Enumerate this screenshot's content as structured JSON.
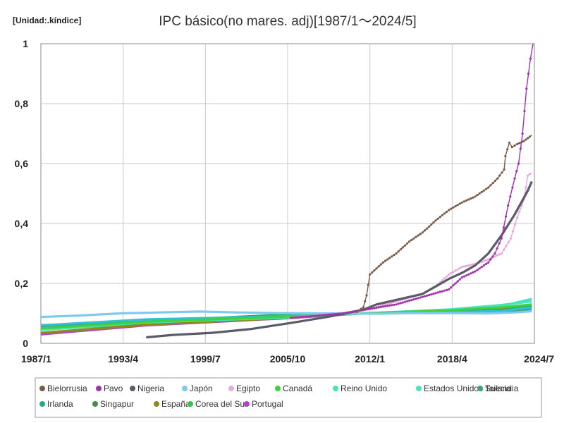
{
  "chart_data": {
    "type": "line",
    "unit_label": "[Unidad:.kíndice]",
    "title": "IPC básico(no mares. adj)[1987/1～2024/5]",
    "xlabel": "",
    "ylabel": "",
    "x_ticks": [
      "1987/1",
      "1993/4",
      "1999/7",
      "2005/10",
      "2012/1",
      "2018/4",
      "2024/7"
    ],
    "x_tick_years": [
      1987.0,
      1993.25,
      1999.5,
      2005.75,
      2012.0,
      2018.25,
      2024.5
    ],
    "xlim": [
      1987.0,
      2024.5
    ],
    "y_ticks": [
      "0",
      "0,2",
      "0,4",
      "0,6",
      "0,8",
      "1"
    ],
    "y_tick_values": [
      0,
      0.2,
      0.4,
      0.6,
      0.8,
      1
    ],
    "ylim": [
      0,
      1
    ],
    "grid": true,
    "legend_position": "bottom",
    "series": [
      {
        "name": "Bielorrusia",
        "color": "#7a5a48",
        "marker": true,
        "points": [
          [
            2011.0,
            0.105
          ],
          [
            2011.5,
            0.12
          ],
          [
            2011.75,
            0.16
          ],
          [
            2012.0,
            0.23
          ],
          [
            2013.0,
            0.27
          ],
          [
            2014.0,
            0.3
          ],
          [
            2015.0,
            0.34
          ],
          [
            2016.0,
            0.37
          ],
          [
            2017.0,
            0.41
          ],
          [
            2018.0,
            0.445
          ],
          [
            2019.0,
            0.47
          ],
          [
            2020.0,
            0.49
          ],
          [
            2021.0,
            0.52
          ],
          [
            2021.7,
            0.55
          ],
          [
            2022.2,
            0.58
          ],
          [
            2022.3,
            0.625
          ],
          [
            2022.6,
            0.67
          ],
          [
            2022.8,
            0.655
          ],
          [
            2023.2,
            0.665
          ],
          [
            2023.7,
            0.675
          ],
          [
            2024.3,
            0.695
          ]
        ]
      },
      {
        "name": "Pavo",
        "color": "#a030b0",
        "marker": true,
        "points": [
          [
            2006.0,
            0.085
          ],
          [
            2010.0,
            0.1
          ],
          [
            2012.0,
            0.115
          ],
          [
            2014.0,
            0.13
          ],
          [
            2016.0,
            0.155
          ],
          [
            2018.0,
            0.18
          ],
          [
            2018.5,
            0.2
          ],
          [
            2019.0,
            0.22
          ],
          [
            2020.0,
            0.24
          ],
          [
            2021.0,
            0.27
          ],
          [
            2021.5,
            0.3
          ],
          [
            2022.0,
            0.35
          ],
          [
            2022.5,
            0.46
          ],
          [
            2023.0,
            0.55
          ],
          [
            2023.3,
            0.6
          ],
          [
            2023.6,
            0.7
          ],
          [
            2023.9,
            0.85
          ],
          [
            2024.2,
            0.95
          ],
          [
            2024.4,
            1.0
          ]
        ]
      },
      {
        "name": "Nigeria",
        "color": "#5a5a68",
        "marker": false,
        "points": [
          [
            1995.0,
            0.02
          ],
          [
            1997.0,
            0.028
          ],
          [
            2000.0,
            0.035
          ],
          [
            2003.0,
            0.048
          ],
          [
            2006.0,
            0.068
          ],
          [
            2009.0,
            0.09
          ],
          [
            2011.5,
            0.112
          ],
          [
            2012.5,
            0.13
          ],
          [
            2014.0,
            0.145
          ],
          [
            2016.0,
            0.165
          ],
          [
            2017.0,
            0.19
          ],
          [
            2018.0,
            0.215
          ],
          [
            2019.0,
            0.235
          ],
          [
            2020.0,
            0.26
          ],
          [
            2021.0,
            0.3
          ],
          [
            2022.0,
            0.36
          ],
          [
            2023.0,
            0.43
          ],
          [
            2024.0,
            0.51
          ],
          [
            2024.3,
            0.54
          ]
        ]
      },
      {
        "name": "Japón",
        "color": "#7fc8f0",
        "marker": false,
        "points": [
          [
            1987.0,
            0.088
          ],
          [
            1990.0,
            0.093
          ],
          [
            1993.0,
            0.1
          ],
          [
            1996.0,
            0.103
          ],
          [
            1999.0,
            0.106
          ],
          [
            2002.0,
            0.103
          ],
          [
            2005.0,
            0.101
          ],
          [
            2008.0,
            0.1
          ],
          [
            2011.0,
            0.099
          ],
          [
            2013.0,
            0.099
          ],
          [
            2015.0,
            0.101
          ],
          [
            2018.0,
            0.101
          ],
          [
            2021.0,
            0.1
          ],
          [
            2023.0,
            0.103
          ],
          [
            2024.3,
            0.107
          ]
        ]
      },
      {
        "name": "Egipto",
        "color": "#e8a8e0",
        "marker": true,
        "points": [
          [
            2006.0,
            0.085
          ],
          [
            2010.0,
            0.102
          ],
          [
            2012.0,
            0.115
          ],
          [
            2014.0,
            0.14
          ],
          [
            2016.0,
            0.165
          ],
          [
            2017.0,
            0.19
          ],
          [
            2018.0,
            0.23
          ],
          [
            2019.0,
            0.255
          ],
          [
            2020.0,
            0.265
          ],
          [
            2021.0,
            0.28
          ],
          [
            2022.0,
            0.3
          ],
          [
            2022.7,
            0.35
          ],
          [
            2023.2,
            0.42
          ],
          [
            2023.7,
            0.48
          ],
          [
            2024.0,
            0.56
          ],
          [
            2024.3,
            0.57
          ]
        ]
      },
      {
        "name": "Canadá",
        "color": "#40d040",
        "marker": false,
        "points": [
          [
            1987.0,
            0.05
          ],
          [
            1995.0,
            0.072
          ],
          [
            2005.0,
            0.088
          ],
          [
            2011.5,
            0.1
          ],
          [
            2018.0,
            0.11
          ],
          [
            2022.0,
            0.12
          ],
          [
            2024.3,
            0.13
          ]
        ]
      },
      {
        "name": "Reino Unido",
        "color": "#40e8b8",
        "marker": false,
        "points": [
          [
            1987.0,
            0.045
          ],
          [
            1995.0,
            0.07
          ],
          [
            2005.0,
            0.085
          ],
          [
            2011.5,
            0.1
          ],
          [
            2018.0,
            0.112
          ],
          [
            2022.0,
            0.125
          ],
          [
            2024.3,
            0.148
          ]
        ]
      },
      {
        "name": "Estados Unidos",
        "color": "#50e0c0",
        "marker": false,
        "points": [
          [
            1987.0,
            0.05
          ],
          [
            1995.0,
            0.07
          ],
          [
            2005.0,
            0.087
          ],
          [
            2011.5,
            0.1
          ],
          [
            2018.0,
            0.113
          ],
          [
            2022.0,
            0.128
          ],
          [
            2024.3,
            0.14
          ]
        ]
      },
      {
        "name": "Suecia",
        "color": "#30c0d0",
        "marker": false,
        "points": [
          [
            1987.0,
            0.06
          ],
          [
            1995.0,
            0.08
          ],
          [
            2005.0,
            0.09
          ],
          [
            2011.5,
            0.1
          ],
          [
            2018.0,
            0.104
          ],
          [
            2022.0,
            0.108
          ],
          [
            2024.3,
            0.12
          ]
        ]
      },
      {
        "name": "Tailandia",
        "color": "#40a080",
        "marker": false,
        "points": [
          [
            1987.0,
            0.055
          ],
          [
            1995.0,
            0.075
          ],
          [
            2005.0,
            0.09
          ],
          [
            2011.5,
            0.1
          ],
          [
            2018.0,
            0.104
          ],
          [
            2022.0,
            0.106
          ],
          [
            2024.3,
            0.11
          ]
        ]
      },
      {
        "name": "Irlanda",
        "color": "#20b070",
        "marker": false,
        "points": [
          [
            1987.0,
            0.058
          ],
          [
            1995.0,
            0.074
          ],
          [
            2005.0,
            0.095
          ],
          [
            2011.5,
            0.1
          ],
          [
            2018.0,
            0.103
          ],
          [
            2022.0,
            0.11
          ],
          [
            2024.3,
            0.125
          ]
        ]
      },
      {
        "name": "Singapur",
        "color": "#409040",
        "marker": false,
        "points": [
          [
            1987.0,
            0.06
          ],
          [
            1995.0,
            0.075
          ],
          [
            2005.0,
            0.085
          ],
          [
            2011.5,
            0.1
          ],
          [
            2018.0,
            0.107
          ],
          [
            2022.0,
            0.11
          ],
          [
            2024.3,
            0.118
          ]
        ]
      },
      {
        "name": "España",
        "color": "#908818",
        "marker": false,
        "points": [
          [
            1987.0,
            0.035
          ],
          [
            1995.0,
            0.062
          ],
          [
            2005.0,
            0.083
          ],
          [
            2011.5,
            0.1
          ],
          [
            2018.0,
            0.108
          ],
          [
            2022.0,
            0.115
          ],
          [
            2024.3,
            0.13
          ]
        ]
      },
      {
        "name": "Corea del Sur",
        "color": "#30c848",
        "marker": false,
        "points": [
          [
            1987.0,
            0.045
          ],
          [
            1995.0,
            0.068
          ],
          [
            2005.0,
            0.087
          ],
          [
            2011.5,
            0.1
          ],
          [
            2018.0,
            0.11
          ],
          [
            2022.0,
            0.118
          ],
          [
            2024.3,
            0.125
          ]
        ]
      },
      {
        "name": "Portugal",
        "color": "#b040d0",
        "marker": false,
        "points": [
          [
            1987.0,
            0.03
          ],
          [
            1995.0,
            0.06
          ],
          [
            2005.0,
            0.082
          ],
          [
            2011.5,
            0.1
          ],
          [
            2018.0,
            0.105
          ],
          [
            2022.0,
            0.113
          ],
          [
            2024.3,
            0.123
          ]
        ]
      }
    ]
  }
}
